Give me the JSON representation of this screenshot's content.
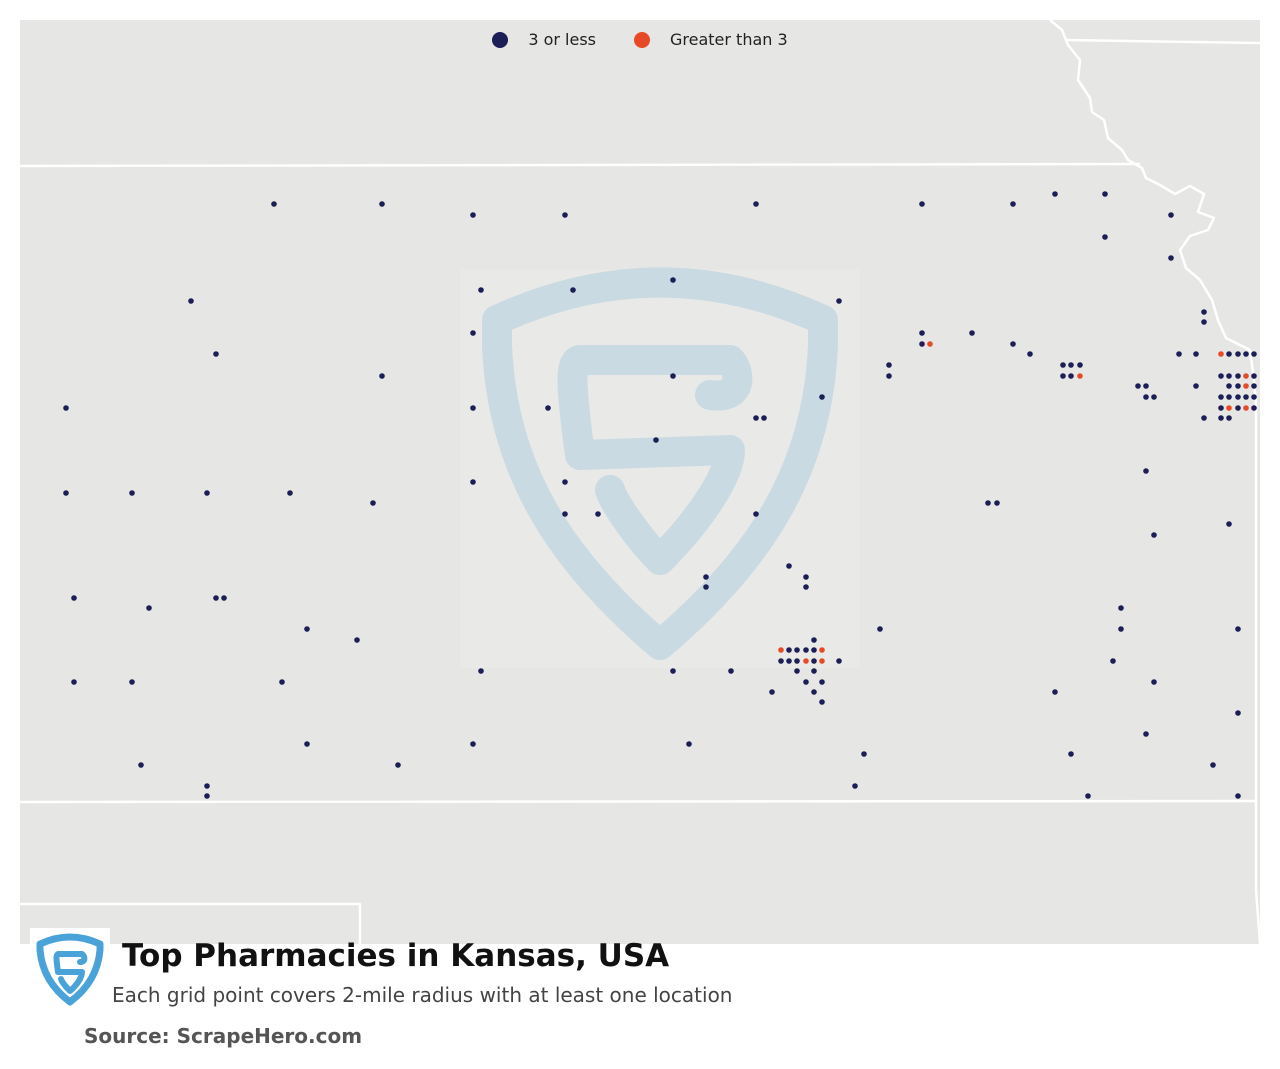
{
  "legend": {
    "low": {
      "label": "3 or less",
      "color": "#1b1f55"
    },
    "high": {
      "label": "Greater than 3",
      "color": "#e84a27"
    }
  },
  "title": "Top Pharmacies in Kansas, USA",
  "subtitle": "Each grid point covers 2-mile radius with at least one location",
  "source": "Source: ScrapeHero.com",
  "colors": {
    "map_background": "#e6e6e4",
    "border": "#ffffff",
    "watermark": "#c9dae3",
    "logo": "#4aa3d8"
  },
  "icons": {
    "watermark": "scrapehero-shield-watermark-icon",
    "logo": "scrapehero-logo-icon"
  }
}
